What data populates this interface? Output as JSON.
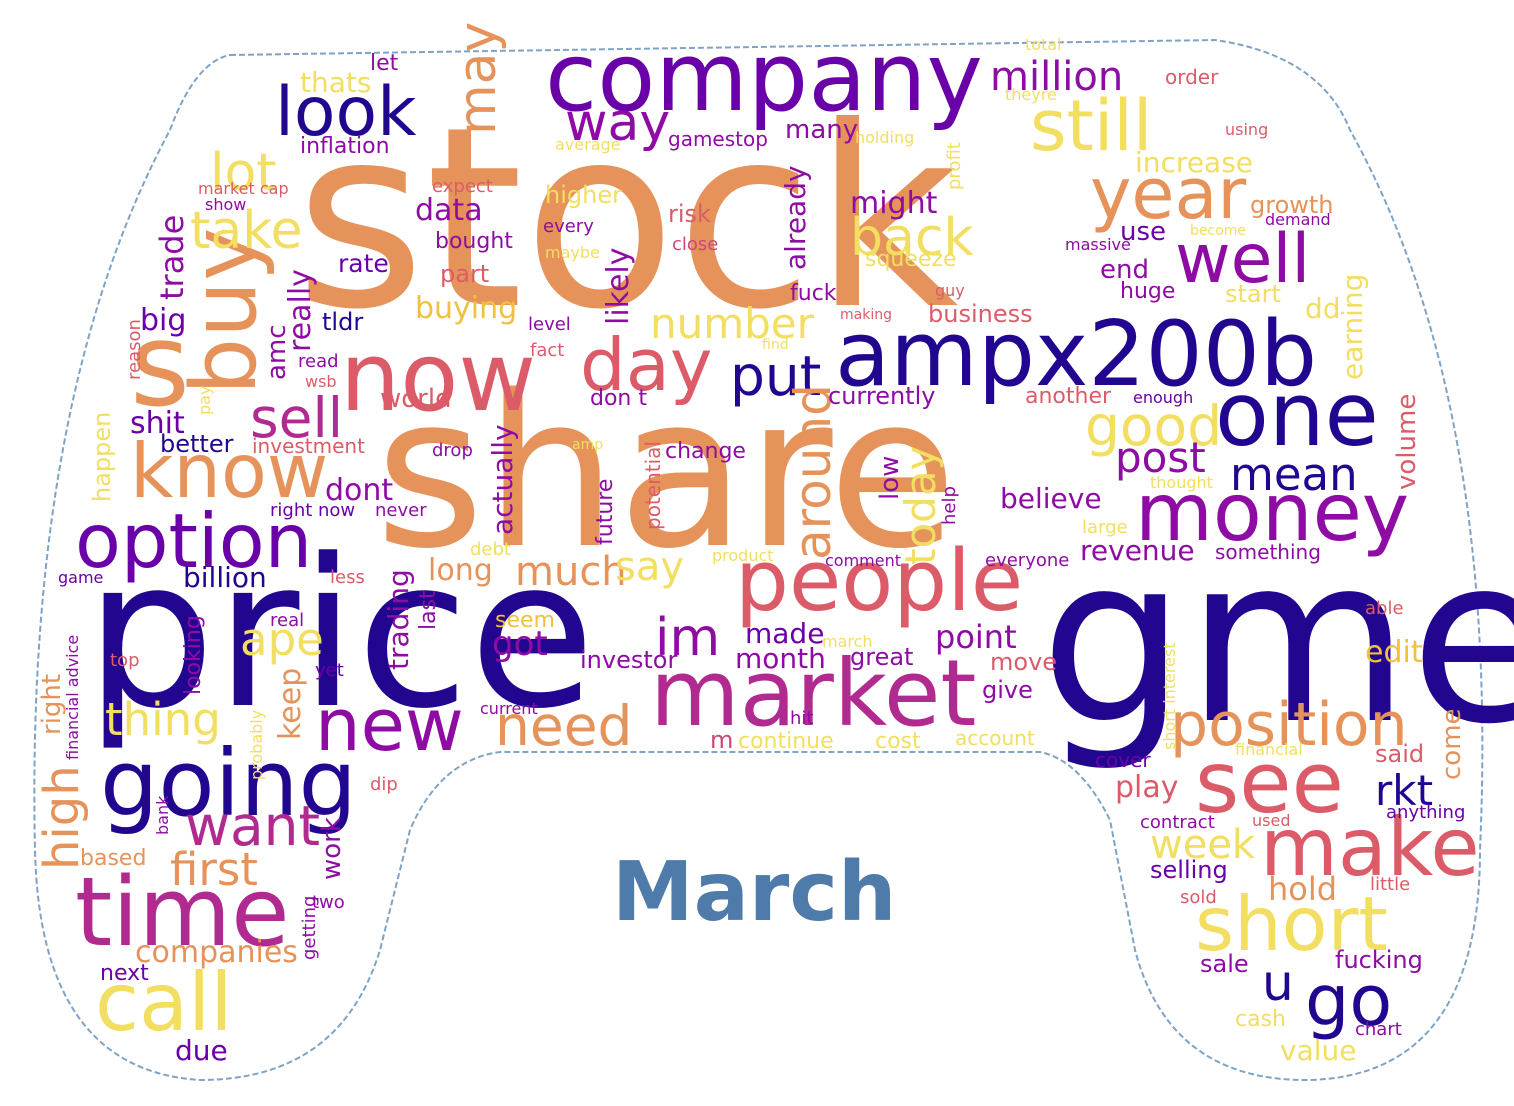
{
  "caption": "March",
  "colors": {
    "caption": "#4f7bab",
    "outline": "#7fa3c6",
    "background": "#ffffff",
    "d": "#220690",
    "p": "#6a00a8",
    "m": "#8e0ca4",
    "r": "#b12a90",
    "s": "#cc4778",
    "c": "#db5c68",
    "o": "#e5935a",
    "y": "#f0c040",
    "l": "#f2de60"
  },
  "words": [
    [
      "stock",
      1,
      "o"
    ],
    [
      "share",
      1,
      "o"
    ],
    [
      "gme",
      1,
      "d"
    ],
    [
      "price",
      1,
      "d"
    ],
    [
      "company",
      1,
      "p"
    ],
    [
      "ampx200b",
      1,
      "d"
    ],
    [
      "now",
      1,
      "c"
    ],
    [
      "s",
      1,
      "o"
    ],
    [
      "buy",
      1,
      "o"
    ],
    [
      "market",
      1,
      "r"
    ],
    [
      "people",
      1,
      "c"
    ],
    [
      "time",
      1,
      "r"
    ],
    [
      "going",
      1,
      "d"
    ],
    [
      "option",
      1,
      "p"
    ],
    [
      "one",
      1,
      "d"
    ],
    [
      "money",
      1,
      "m"
    ],
    [
      "see",
      1,
      "c"
    ],
    [
      "make",
      1,
      "c"
    ],
    [
      "short",
      1,
      "l"
    ],
    [
      "call",
      1,
      "l"
    ],
    [
      "know",
      1,
      "o"
    ],
    [
      "day",
      1,
      "c"
    ],
    [
      "new",
      1,
      "m"
    ],
    [
      "look",
      1,
      "d"
    ],
    [
      "still",
      1,
      "l"
    ],
    [
      "year",
      1,
      "o"
    ],
    [
      "well",
      1,
      "m"
    ],
    [
      "position",
      1,
      "o"
    ],
    [
      "go",
      1,
      "d"
    ],
    [
      "u",
      1,
      "d"
    ],
    [
      "want",
      1,
      "r"
    ],
    [
      "sell",
      1,
      "r"
    ],
    [
      "take",
      1,
      "l"
    ],
    [
      "lot",
      1,
      "l"
    ],
    [
      "way",
      1,
      "m"
    ],
    [
      "may",
      1,
      "o"
    ],
    [
      "million",
      1,
      "m"
    ],
    [
      "good",
      1,
      "l"
    ],
    [
      "back",
      1,
      "l"
    ],
    [
      "put",
      1,
      "d"
    ],
    [
      "im",
      1,
      "m"
    ],
    [
      "much",
      1,
      "o"
    ],
    [
      "need",
      1,
      "o"
    ],
    [
      "mean",
      1,
      "d"
    ],
    [
      "post",
      1,
      "m"
    ],
    [
      "number",
      1,
      "l"
    ],
    [
      "around",
      1,
      "o"
    ],
    [
      "first",
      1,
      "o"
    ],
    [
      "thing",
      1,
      "l"
    ],
    [
      "ape",
      1,
      "l"
    ],
    [
      "rkt",
      1,
      "d"
    ],
    [
      "week",
      1,
      "l"
    ],
    [
      "hold",
      1,
      "o"
    ],
    [
      "say",
      1,
      "l"
    ],
    [
      "billion",
      1,
      "d"
    ],
    [
      "high",
      1,
      "o"
    ],
    [
      "companies",
      1,
      "o"
    ],
    [
      "dont",
      1,
      "m"
    ],
    [
      "today",
      1,
      "l"
    ],
    [
      "point",
      1,
      "m"
    ],
    [
      "got",
      1,
      "m"
    ],
    [
      "made",
      1,
      "p"
    ],
    [
      "month",
      1,
      "m"
    ],
    [
      "long",
      1,
      "o"
    ],
    [
      "big",
      1,
      "p"
    ],
    [
      "trade",
      1,
      "m"
    ],
    [
      "really",
      1,
      "m"
    ],
    [
      "shit",
      1,
      "p"
    ],
    [
      "better",
      1,
      "d"
    ],
    [
      "data",
      1,
      "m"
    ],
    [
      "bought",
      1,
      "m"
    ],
    [
      "rate",
      1,
      "p"
    ],
    [
      "might",
      1,
      "m"
    ],
    [
      "already",
      1,
      "m"
    ],
    [
      "likely",
      1,
      "m"
    ],
    [
      "believe",
      1,
      "m"
    ],
    [
      "revenue",
      1,
      "m"
    ],
    [
      "increase",
      1,
      "l"
    ],
    [
      "growth",
      1,
      "o"
    ],
    [
      "use",
      1,
      "p"
    ],
    [
      "end",
      1,
      "m"
    ],
    [
      "huge",
      1,
      "m"
    ],
    [
      "dd",
      1,
      "l"
    ],
    [
      "earning",
      1,
      "l"
    ],
    [
      "volume",
      1,
      "c"
    ],
    [
      "edit",
      1,
      "y"
    ],
    [
      "said",
      1,
      "c"
    ],
    [
      "come",
      1,
      "o"
    ],
    [
      "play",
      1,
      "c"
    ],
    [
      "selling",
      1,
      "p"
    ],
    [
      "fucking",
      1,
      "m"
    ],
    [
      "value",
      1,
      "l"
    ],
    [
      "due",
      1,
      "p"
    ],
    [
      "next",
      1,
      "p"
    ],
    [
      "keep",
      1,
      "o"
    ],
    [
      "work",
      1,
      "m"
    ],
    [
      "right",
      1,
      "o"
    ],
    [
      "buying",
      1,
      "y"
    ],
    [
      "tldr",
      1,
      "d"
    ],
    [
      "amc",
      1,
      "m"
    ],
    [
      "world",
      1,
      "c"
    ],
    [
      "actually",
      1,
      "m"
    ],
    [
      "trading",
      1,
      "m"
    ],
    [
      "last",
      1,
      "m"
    ],
    [
      "future",
      1,
      "m"
    ],
    [
      "seem",
      1,
      "y"
    ],
    [
      "investor",
      1,
      "m"
    ],
    [
      "great",
      1,
      "m"
    ],
    [
      "move",
      1,
      "c"
    ],
    [
      "give",
      1,
      "m"
    ],
    [
      "continue",
      1,
      "l"
    ],
    [
      "cost",
      1,
      "l"
    ],
    [
      "account",
      1,
      "l"
    ],
    [
      "cover",
      1,
      "p"
    ],
    [
      "currently",
      1,
      "m"
    ],
    [
      "another",
      1,
      "c"
    ],
    [
      "business",
      1,
      "c"
    ],
    [
      "squeeze",
      1,
      "l"
    ],
    [
      "start",
      1,
      "l"
    ],
    [
      "fuck",
      1,
      "m"
    ],
    [
      "gamestop",
      1,
      "m"
    ],
    [
      "many",
      1,
      "m"
    ],
    [
      "risk",
      1,
      "c"
    ],
    [
      "low",
      1,
      "m"
    ],
    [
      "change",
      1,
      "m"
    ],
    [
      "something",
      1,
      "m"
    ],
    [
      "comment",
      1,
      "m"
    ],
    [
      "everyone",
      1,
      "m"
    ],
    [
      "thats",
      1,
      "l"
    ],
    [
      "let",
      1,
      "m"
    ],
    [
      "inflation",
      1,
      "m"
    ],
    [
      "higher",
      1,
      "l"
    ],
    [
      "every",
      1,
      "m"
    ],
    [
      "maybe",
      1,
      "l"
    ],
    [
      "close",
      1,
      "s"
    ],
    [
      "part",
      1,
      "c"
    ],
    [
      "level",
      1,
      "m"
    ],
    [
      "fact",
      1,
      "c"
    ],
    [
      "don t",
      1,
      "m"
    ],
    [
      "potential",
      1,
      "c"
    ],
    [
      "drop",
      1,
      "m"
    ],
    [
      "investment",
      1,
      "c"
    ],
    [
      "right now",
      1,
      "p"
    ],
    [
      "never",
      1,
      "m"
    ],
    [
      "help",
      1,
      "m"
    ],
    [
      "large",
      1,
      "l"
    ],
    [
      "thought",
      1,
      "l"
    ],
    [
      "able",
      1,
      "c"
    ],
    [
      "financial",
      1,
      "l"
    ],
    [
      "anything",
      1,
      "p"
    ],
    [
      "contract",
      1,
      "m"
    ],
    [
      "used",
      1,
      "c"
    ],
    [
      "little",
      1,
      "c"
    ],
    [
      "sold",
      1,
      "c"
    ],
    [
      "cash",
      1,
      "l"
    ],
    [
      "chart",
      1,
      "m"
    ],
    [
      "sale",
      1,
      "m"
    ],
    [
      "short interest",
      1,
      "l"
    ],
    [
      "enough",
      1,
      "p"
    ],
    [
      "massive",
      1,
      "m"
    ],
    [
      "demand",
      1,
      "m"
    ],
    [
      "become",
      1,
      "l"
    ],
    [
      "using",
      1,
      "c"
    ],
    [
      "order",
      1,
      "c"
    ],
    [
      "theyre",
      1,
      "l"
    ],
    [
      "total",
      1,
      "l"
    ],
    [
      "profit",
      1,
      "l"
    ],
    [
      "holding",
      1,
      "l"
    ],
    [
      "average",
      1,
      "l"
    ],
    [
      "expect",
      1,
      "c"
    ],
    [
      "market cap",
      1,
      "c"
    ],
    [
      "show",
      1,
      "m"
    ],
    [
      "reason",
      1,
      "c"
    ],
    [
      "read",
      1,
      "m"
    ],
    [
      "wsb",
      1,
      "c"
    ],
    [
      "pay",
      1,
      "l"
    ],
    [
      "happen",
      1,
      "l"
    ],
    [
      "game",
      1,
      "p"
    ],
    [
      "real",
      1,
      "m"
    ],
    [
      "less",
      1,
      "c"
    ],
    [
      "financial advice",
      1,
      "m"
    ],
    [
      "top",
      1,
      "c"
    ],
    [
      "probably",
      1,
      "l"
    ],
    [
      "yet",
      1,
      "p"
    ],
    [
      "looking",
      1,
      "m"
    ],
    [
      "current",
      1,
      "m"
    ],
    [
      "hit",
      1,
      "m"
    ],
    [
      "m",
      1,
      "s"
    ],
    [
      "product",
      1,
      "l"
    ],
    [
      "debt",
      1,
      "l"
    ],
    [
      "march",
      1,
      "l"
    ],
    [
      "amp",
      1,
      "l"
    ],
    [
      "find",
      1,
      "l"
    ],
    [
      "guy",
      1,
      "c"
    ],
    [
      "making",
      1,
      "c"
    ],
    [
      "dip",
      1,
      "c"
    ],
    [
      "bank",
      1,
      "m"
    ],
    [
      "based",
      1,
      "o"
    ],
    [
      "getting",
      1,
      "m"
    ],
    [
      "two",
      1,
      "m"
    ]
  ]
}
